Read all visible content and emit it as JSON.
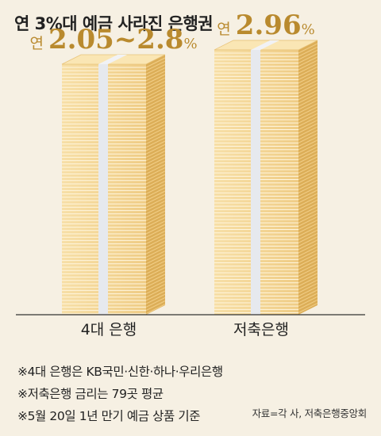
{
  "title": "연 3%대 예금 사라진 은행권",
  "chart_data": {
    "type": "bar",
    "categories": [
      "4대 은행",
      "저축은행"
    ],
    "values": [
      2.8,
      2.96
    ],
    "ranges": [
      [
        2.05,
        2.8
      ],
      [
        2.96,
        2.96
      ]
    ],
    "rate_labels": [
      {
        "prefix": "연",
        "value": "2.05~2.8",
        "unit": "%"
      },
      {
        "prefix": "연",
        "value": "2.96",
        "unit": "%"
      }
    ],
    "ylim": [
      0,
      3.5
    ],
    "unit": "%"
  },
  "colors": {
    "background": "#f6f0e3",
    "label_gold": "#b98a2e",
    "stack_face": "#f4d79b",
    "stack_line": "#fff6de",
    "stack_side": "#dcae58",
    "stack_top": "#fae6b4",
    "band": "#e6e9ee"
  },
  "footnotes": [
    "※4대 은행은 KB국민·신한·하나·우리은행",
    "※저축은행 금리는 79곳 평균",
    "※5월 20일 1년 만기 예금 상품 기준"
  ],
  "source": "자료=각 사, 저축은행중앙회"
}
